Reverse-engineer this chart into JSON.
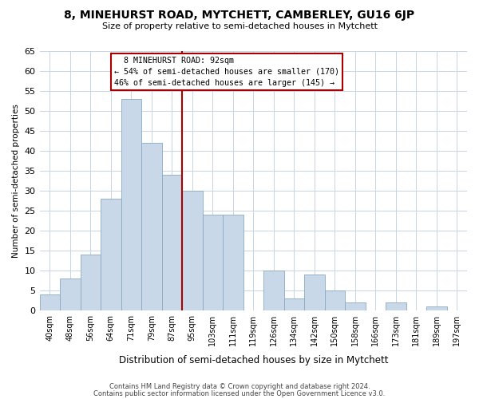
{
  "title": "8, MINEHURST ROAD, MYTCHETT, CAMBERLEY, GU16 6JP",
  "subtitle": "Size of property relative to semi-detached houses in Mytchett",
  "xlabel": "Distribution of semi-detached houses by size in Mytchett",
  "ylabel": "Number of semi-detached properties",
  "footnote1": "Contains HM Land Registry data © Crown copyright and database right 2024.",
  "footnote2": "Contains public sector information licensed under the Open Government Licence v3.0.",
  "bar_labels": [
    "40sqm",
    "48sqm",
    "56sqm",
    "64sqm",
    "71sqm",
    "79sqm",
    "87sqm",
    "95sqm",
    "103sqm",
    "111sqm",
    "119sqm",
    "126sqm",
    "134sqm",
    "142sqm",
    "150sqm",
    "158sqm",
    "166sqm",
    "173sqm",
    "181sqm",
    "189sqm",
    "197sqm"
  ],
  "bar_values": [
    4,
    8,
    14,
    28,
    53,
    42,
    34,
    30,
    24,
    24,
    0,
    10,
    3,
    9,
    5,
    2,
    0,
    2,
    0,
    1,
    0
  ],
  "bar_color": "#c8d8e8",
  "bar_edge_color": "#8aaac0",
  "vline_color": "#aa0000",
  "annotation_title": "8 MINEHURST ROAD: 92sqm",
  "annotation_line1": "← 54% of semi-detached houses are smaller (170)",
  "annotation_line2": "46% of semi-detached houses are larger (145) →",
  "annotation_box_color": "#ffffff",
  "annotation_box_edge": "#aa0000",
  "ylim": [
    0,
    65
  ],
  "yticks": [
    0,
    5,
    10,
    15,
    20,
    25,
    30,
    35,
    40,
    45,
    50,
    55,
    60,
    65
  ],
  "background_color": "#ffffff",
  "grid_color": "#c8d4e4"
}
